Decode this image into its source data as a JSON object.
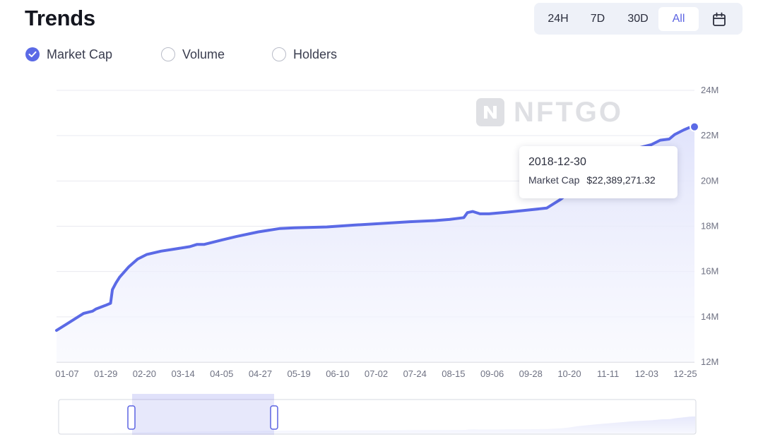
{
  "header": {
    "title": "Trends"
  },
  "time_range": {
    "options": [
      "24H",
      "7D",
      "30D",
      "All"
    ],
    "selected": "All",
    "calendar_icon": "calendar-icon"
  },
  "metrics": [
    {
      "label": "Market Cap",
      "checked": true
    },
    {
      "label": "Volume",
      "checked": false
    },
    {
      "label": "Holders",
      "checked": false
    }
  ],
  "watermark": {
    "text": "NFTGO"
  },
  "tooltip": {
    "date": "2018-12-30",
    "label": "Market Cap",
    "value": "$22,389,271.32"
  },
  "colors": {
    "accent": "#5b63e2",
    "line": "#5b6ae6",
    "area": "#e6e8fb"
  },
  "chart_data": {
    "type": "area",
    "title": "",
    "xlabel": "",
    "ylabel": "",
    "x_ticks": [
      "01-07",
      "01-29",
      "02-20",
      "03-14",
      "04-05",
      "04-27",
      "05-19",
      "06-10",
      "07-02",
      "07-24",
      "08-15",
      "09-06",
      "09-28",
      "10-20",
      "11-11",
      "12-03",
      "12-25"
    ],
    "y_ticks": [
      "12M",
      "14M",
      "16M",
      "18M",
      "20M",
      "22M",
      "24M"
    ],
    "ylim": [
      12,
      24
    ],
    "y_unit": "M",
    "y_axis_position": "right",
    "grid": true,
    "series": [
      {
        "values": [
          [
            0,
            13.4
          ],
          [
            5,
            13.65
          ],
          [
            12,
            14.0
          ],
          [
            15,
            14.15
          ],
          [
            20,
            14.25
          ],
          [
            22,
            14.35
          ],
          [
            27,
            14.5
          ],
          [
            30,
            14.6
          ],
          [
            31,
            15.2
          ],
          [
            33,
            15.5
          ],
          [
            35,
            15.75
          ],
          [
            40,
            16.2
          ],
          [
            45,
            16.55
          ],
          [
            50,
            16.75
          ],
          [
            58,
            16.9
          ],
          [
            66,
            17.0
          ],
          [
            74,
            17.1
          ],
          [
            78,
            17.2
          ],
          [
            82,
            17.2
          ],
          [
            92,
            17.4
          ],
          [
            100,
            17.55
          ],
          [
            112,
            17.75
          ],
          [
            120,
            17.85
          ],
          [
            124,
            17.9
          ],
          [
            132,
            17.93
          ],
          [
            150,
            17.97
          ],
          [
            165,
            18.05
          ],
          [
            180,
            18.12
          ],
          [
            196,
            18.2
          ],
          [
            210,
            18.25
          ],
          [
            218,
            18.3
          ],
          [
            226,
            18.38
          ],
          [
            228,
            18.6
          ],
          [
            231,
            18.65
          ],
          [
            235,
            18.55
          ],
          [
            240,
            18.55
          ],
          [
            250,
            18.62
          ],
          [
            260,
            18.7
          ],
          [
            272,
            18.8
          ],
          [
            276,
            19.0
          ],
          [
            280,
            19.2
          ],
          [
            283,
            19.4
          ],
          [
            289,
            20.0
          ],
          [
            300,
            20.6
          ],
          [
            315,
            21.2
          ],
          [
            320,
            21.4
          ],
          [
            330,
            21.6
          ],
          [
            335,
            21.8
          ],
          [
            340,
            21.85
          ],
          [
            343,
            22.05
          ],
          [
            348,
            22.25
          ],
          [
            351,
            22.35
          ],
          [
            354,
            22.39
          ]
        ]
      }
    ]
  }
}
